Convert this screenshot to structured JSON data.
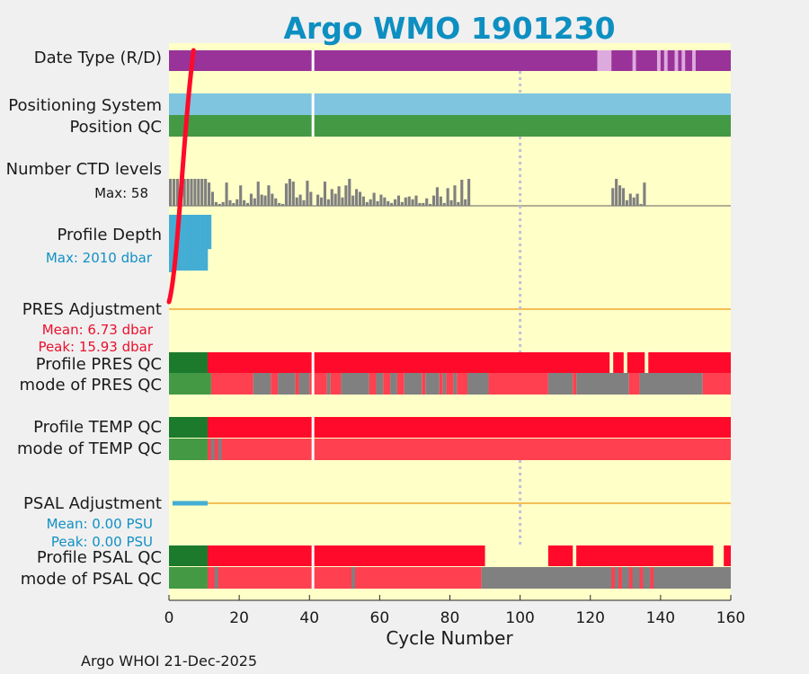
{
  "title": "Argo WMO 1901230",
  "footer": "Argo WHOI 21-Dec-2025",
  "colors": {
    "background": "#ffffc8",
    "purple": "#993399",
    "light_purple": "#ddaadd",
    "sky": "#7fc5df",
    "green": "#449944",
    "dark_green": "#1b7a2c",
    "red": "#ff0a2a",
    "light_red": "#ff4050",
    "gray": "#808080",
    "blue": "#43add4",
    "orange_line": "#f2bf55",
    "title_blue": "#0d8fc1",
    "label_red": "#e8102e",
    "label_blue": "#1190c4"
  },
  "labels": {
    "date_type": "Date Type (R/D)",
    "positioning_system": "Positioning System",
    "position_qc": "Position QC",
    "ctd_levels": "Number CTD levels",
    "ctd_max": "Max: 58",
    "profile_depth": "Profile Depth",
    "depth_max": "Max: 2010 dbar",
    "pres_adjustment": "PRES Adjustment",
    "pres_mean": "Mean: 6.73 dbar",
    "pres_peak": "Peak: 15.93 dbar",
    "profile_pres_qc": "Profile PRES QC",
    "mode_pres_qc": "mode of PRES QC",
    "profile_temp_qc": "Profile TEMP QC",
    "mode_temp_qc": "mode of TEMP QC",
    "psal_adjustment": "PSAL Adjustment",
    "psal_mean": "Mean: 0.00 PSU",
    "psal_peak": "Peak: 0.00 PSU",
    "profile_psal_qc": "Profile PSAL QC",
    "mode_psal_qc": "mode of PSAL QC"
  },
  "chart_data": {
    "type": "bar",
    "xlabel": "Cycle Number",
    "xlim": [
      0,
      160
    ],
    "xticks": [
      0,
      20,
      40,
      60,
      80,
      100,
      120,
      140,
      160
    ],
    "gap_cycles": [
      41
    ],
    "vline_cycle": 100,
    "date_type_segments": [
      {
        "start": 0,
        "end": 122,
        "color": "purple"
      },
      {
        "start": 122,
        "end": 126,
        "color": "light_purple"
      },
      {
        "start": 126,
        "end": 160,
        "color": "purple"
      },
      {
        "start": 132,
        "end": 133,
        "color": "light_purple"
      },
      {
        "start": 139,
        "end": 140,
        "color": "light_purple"
      },
      {
        "start": 141,
        "end": 142,
        "color": "light_purple"
      },
      {
        "start": 144,
        "end": 145,
        "color": "light_purple"
      },
      {
        "start": 146,
        "end": 147,
        "color": "light_purple"
      },
      {
        "start": 149,
        "end": 150,
        "color": "light_purple"
      }
    ],
    "positioning_system": [
      {
        "start": 0,
        "end": 160,
        "color": "sky"
      }
    ],
    "position_qc": [
      {
        "start": 0,
        "end": 160,
        "color": "green"
      }
    ],
    "ctd_levels_max": 58,
    "ctd_levels": [
      {
        "cycle": 0,
        "value": 58
      },
      {
        "cycle": 1,
        "value": 58
      },
      {
        "cycle": 2,
        "value": 58
      },
      {
        "cycle": 3,
        "value": 58
      },
      {
        "cycle": 4,
        "value": 58
      },
      {
        "cycle": 5,
        "value": 58
      },
      {
        "cycle": 6,
        "value": 58
      },
      {
        "cycle": 7,
        "value": 58
      },
      {
        "cycle": 8,
        "value": 58
      },
      {
        "cycle": 9,
        "value": 58
      },
      {
        "cycle": 10,
        "value": 58
      },
      {
        "cycle": 11,
        "value": 50
      },
      {
        "cycle": 12,
        "value": 30
      },
      {
        "cycle": 13,
        "value": 8
      },
      {
        "cycle": 14,
        "value": 4
      },
      {
        "cycle": 15,
        "value": 8
      },
      {
        "cycle": 16,
        "value": 50
      },
      {
        "cycle": 17,
        "value": 12
      },
      {
        "cycle": 18,
        "value": 6
      },
      {
        "cycle": 19,
        "value": 14
      },
      {
        "cycle": 20,
        "value": 44
      },
      {
        "cycle": 21,
        "value": 12
      },
      {
        "cycle": 22,
        "value": 6
      },
      {
        "cycle": 23,
        "value": 26
      },
      {
        "cycle": 24,
        "value": 16
      },
      {
        "cycle": 25,
        "value": 52
      },
      {
        "cycle": 26,
        "value": 24
      },
      {
        "cycle": 27,
        "value": 22
      },
      {
        "cycle": 28,
        "value": 44
      },
      {
        "cycle": 29,
        "value": 26
      },
      {
        "cycle": 30,
        "value": 16
      },
      {
        "cycle": 31,
        "value": 6
      },
      {
        "cycle": 32,
        "value": 4
      },
      {
        "cycle": 33,
        "value": 48
      },
      {
        "cycle": 34,
        "value": 58
      },
      {
        "cycle": 35,
        "value": 52
      },
      {
        "cycle": 36,
        "value": 18
      },
      {
        "cycle": 37,
        "value": 24
      },
      {
        "cycle": 38,
        "value": 12
      },
      {
        "cycle": 39,
        "value": 54
      },
      {
        "cycle": 40,
        "value": 30
      },
      {
        "cycle": 42,
        "value": 24
      },
      {
        "cycle": 43,
        "value": 18
      },
      {
        "cycle": 44,
        "value": 52
      },
      {
        "cycle": 45,
        "value": 14
      },
      {
        "cycle": 46,
        "value": 36
      },
      {
        "cycle": 47,
        "value": 26
      },
      {
        "cycle": 48,
        "value": 42
      },
      {
        "cycle": 49,
        "value": 18
      },
      {
        "cycle": 50,
        "value": 44
      },
      {
        "cycle": 51,
        "value": 58
      },
      {
        "cycle": 52,
        "value": 22
      },
      {
        "cycle": 53,
        "value": 36
      },
      {
        "cycle": 54,
        "value": 30
      },
      {
        "cycle": 55,
        "value": 20
      },
      {
        "cycle": 56,
        "value": 8
      },
      {
        "cycle": 57,
        "value": 14
      },
      {
        "cycle": 58,
        "value": 28
      },
      {
        "cycle": 59,
        "value": 10
      },
      {
        "cycle": 60,
        "value": 24
      },
      {
        "cycle": 61,
        "value": 18
      },
      {
        "cycle": 62,
        "value": 10
      },
      {
        "cycle": 63,
        "value": 6
      },
      {
        "cycle": 64,
        "value": 14
      },
      {
        "cycle": 65,
        "value": 22
      },
      {
        "cycle": 66,
        "value": 8
      },
      {
        "cycle": 67,
        "value": 18
      },
      {
        "cycle": 68,
        "value": 20
      },
      {
        "cycle": 69,
        "value": 14
      },
      {
        "cycle": 70,
        "value": 22
      },
      {
        "cycle": 71,
        "value": 6
      },
      {
        "cycle": 72,
        "value": 6
      },
      {
        "cycle": 73,
        "value": 16
      },
      {
        "cycle": 74,
        "value": 4
      },
      {
        "cycle": 75,
        "value": 22
      },
      {
        "cycle": 76,
        "value": 40
      },
      {
        "cycle": 77,
        "value": 20
      },
      {
        "cycle": 78,
        "value": 6
      },
      {
        "cycle": 79,
        "value": 38
      },
      {
        "cycle": 80,
        "value": 12
      },
      {
        "cycle": 81,
        "value": 44
      },
      {
        "cycle": 82,
        "value": 8
      },
      {
        "cycle": 83,
        "value": 56
      },
      {
        "cycle": 84,
        "value": 14
      },
      {
        "cycle": 85,
        "value": 58
      },
      {
        "cycle": 126,
        "value": 38
      },
      {
        "cycle": 127,
        "value": 58
      },
      {
        "cycle": 128,
        "value": 44
      },
      {
        "cycle": 129,
        "value": 38
      },
      {
        "cycle": 130,
        "value": 12
      },
      {
        "cycle": 131,
        "value": 26
      },
      {
        "cycle": 132,
        "value": 18
      },
      {
        "cycle": 133,
        "value": 26
      },
      {
        "cycle": 134,
        "value": 4
      },
      {
        "cycle": 135,
        "value": 50
      }
    ],
    "profile_depth_max": 2010,
    "profile_depth": [
      {
        "cycle": 0,
        "value": 2010
      },
      {
        "cycle": 1,
        "value": 1950
      },
      {
        "cycle": 2,
        "value": 1950
      },
      {
        "cycle": 3,
        "value": 1950
      },
      {
        "cycle": 4,
        "value": 1950
      },
      {
        "cycle": 5,
        "value": 1950
      },
      {
        "cycle": 6,
        "value": 1950
      },
      {
        "cycle": 7,
        "value": 1950
      },
      {
        "cycle": 8,
        "value": 1950
      },
      {
        "cycle": 9,
        "value": 1950
      },
      {
        "cycle": 10,
        "value": 1950
      },
      {
        "cycle": 11,
        "value": 1200
      }
    ],
    "pres_adjustment": {
      "mean": 6.73,
      "peak": 15.93,
      "unit": "dbar",
      "curve_end_cycle": 7,
      "line_start_cycle": 0,
      "line_end_cycle": 160
    },
    "profile_pres_qc": [
      {
        "start": 0,
        "end": 11,
        "color": "dark_green"
      },
      {
        "start": 11,
        "end": 160,
        "color": "red"
      }
    ],
    "profile_pres_qc_gaps": [
      126,
      130,
      136
    ],
    "mode_pres_qc": [
      {
        "start": 0,
        "end": 12,
        "color": "green"
      },
      {
        "start": 12,
        "end": 24,
        "color": "light_red"
      },
      {
        "start": 24,
        "end": 29,
        "color": "gray"
      },
      {
        "start": 29,
        "end": 31,
        "color": "light_red"
      },
      {
        "start": 31,
        "end": 36,
        "color": "gray"
      },
      {
        "start": 36,
        "end": 37,
        "color": "light_red"
      },
      {
        "start": 37,
        "end": 40,
        "color": "gray"
      },
      {
        "start": 40,
        "end": 45,
        "color": "light_red"
      },
      {
        "start": 45,
        "end": 46,
        "color": "gray"
      },
      {
        "start": 46,
        "end": 49,
        "color": "light_red"
      },
      {
        "start": 49,
        "end": 57,
        "color": "gray"
      },
      {
        "start": 57,
        "end": 59,
        "color": "light_red"
      },
      {
        "start": 59,
        "end": 61,
        "color": "gray"
      },
      {
        "start": 61,
        "end": 63,
        "color": "light_red"
      },
      {
        "start": 63,
        "end": 65,
        "color": "gray"
      },
      {
        "start": 65,
        "end": 67,
        "color": "light_red"
      },
      {
        "start": 67,
        "end": 72,
        "color": "gray"
      },
      {
        "start": 72,
        "end": 73,
        "color": "light_red"
      },
      {
        "start": 73,
        "end": 77,
        "color": "gray"
      },
      {
        "start": 77,
        "end": 78,
        "color": "light_red"
      },
      {
        "start": 78,
        "end": 79,
        "color": "gray"
      },
      {
        "start": 79,
        "end": 81,
        "color": "light_red"
      },
      {
        "start": 81,
        "end": 82,
        "color": "gray"
      },
      {
        "start": 82,
        "end": 85,
        "color": "light_red"
      },
      {
        "start": 85,
        "end": 91,
        "color": "gray"
      },
      {
        "start": 91,
        "end": 108,
        "color": "light_red"
      },
      {
        "start": 108,
        "end": 115,
        "color": "gray"
      },
      {
        "start": 115,
        "end": 116,
        "color": "light_red"
      },
      {
        "start": 116,
        "end": 131,
        "color": "gray"
      },
      {
        "start": 131,
        "end": 134,
        "color": "light_red"
      },
      {
        "start": 134,
        "end": 152,
        "color": "gray"
      },
      {
        "start": 152,
        "end": 160,
        "color": "light_red"
      }
    ],
    "profile_temp_qc": [
      {
        "start": 0,
        "end": 11,
        "color": "dark_green"
      },
      {
        "start": 11,
        "end": 160,
        "color": "red"
      }
    ],
    "mode_temp_qc": [
      {
        "start": 0,
        "end": 11,
        "color": "green"
      },
      {
        "start": 11,
        "end": 160,
        "color": "light_red"
      },
      {
        "start": 12,
        "end": 13,
        "color": "gray"
      },
      {
        "start": 14,
        "end": 15,
        "color": "gray"
      }
    ],
    "psal_adjustment": {
      "mean": 0.0,
      "peak": 0.0,
      "unit": "PSU",
      "bar_start_cycle": 1,
      "bar_end_cycle": 11,
      "line_start_cycle": 11,
      "line_end_cycle": 160
    },
    "profile_psal_qc": [
      {
        "start": 0,
        "end": 11,
        "color": "dark_green"
      },
      {
        "start": 11,
        "end": 90,
        "color": "red"
      },
      {
        "start": 108,
        "end": 115,
        "color": "red"
      },
      {
        "start": 116,
        "end": 155,
        "color": "red"
      },
      {
        "start": 158,
        "end": 160,
        "color": "red"
      }
    ],
    "mode_psal_qc": [
      {
        "start": 0,
        "end": 11,
        "color": "green"
      },
      {
        "start": 11,
        "end": 89,
        "color": "light_red"
      },
      {
        "start": 13,
        "end": 14,
        "color": "gray"
      },
      {
        "start": 52,
        "end": 53,
        "color": "gray"
      },
      {
        "start": 89,
        "end": 160,
        "color": "gray"
      },
      {
        "start": 126,
        "end": 127,
        "color": "light_red"
      },
      {
        "start": 128,
        "end": 129,
        "color": "light_red"
      },
      {
        "start": 131,
        "end": 132,
        "color": "light_red"
      },
      {
        "start": 134,
        "end": 135,
        "color": "light_red"
      },
      {
        "start": 137,
        "end": 138,
        "color": "light_red"
      }
    ]
  }
}
